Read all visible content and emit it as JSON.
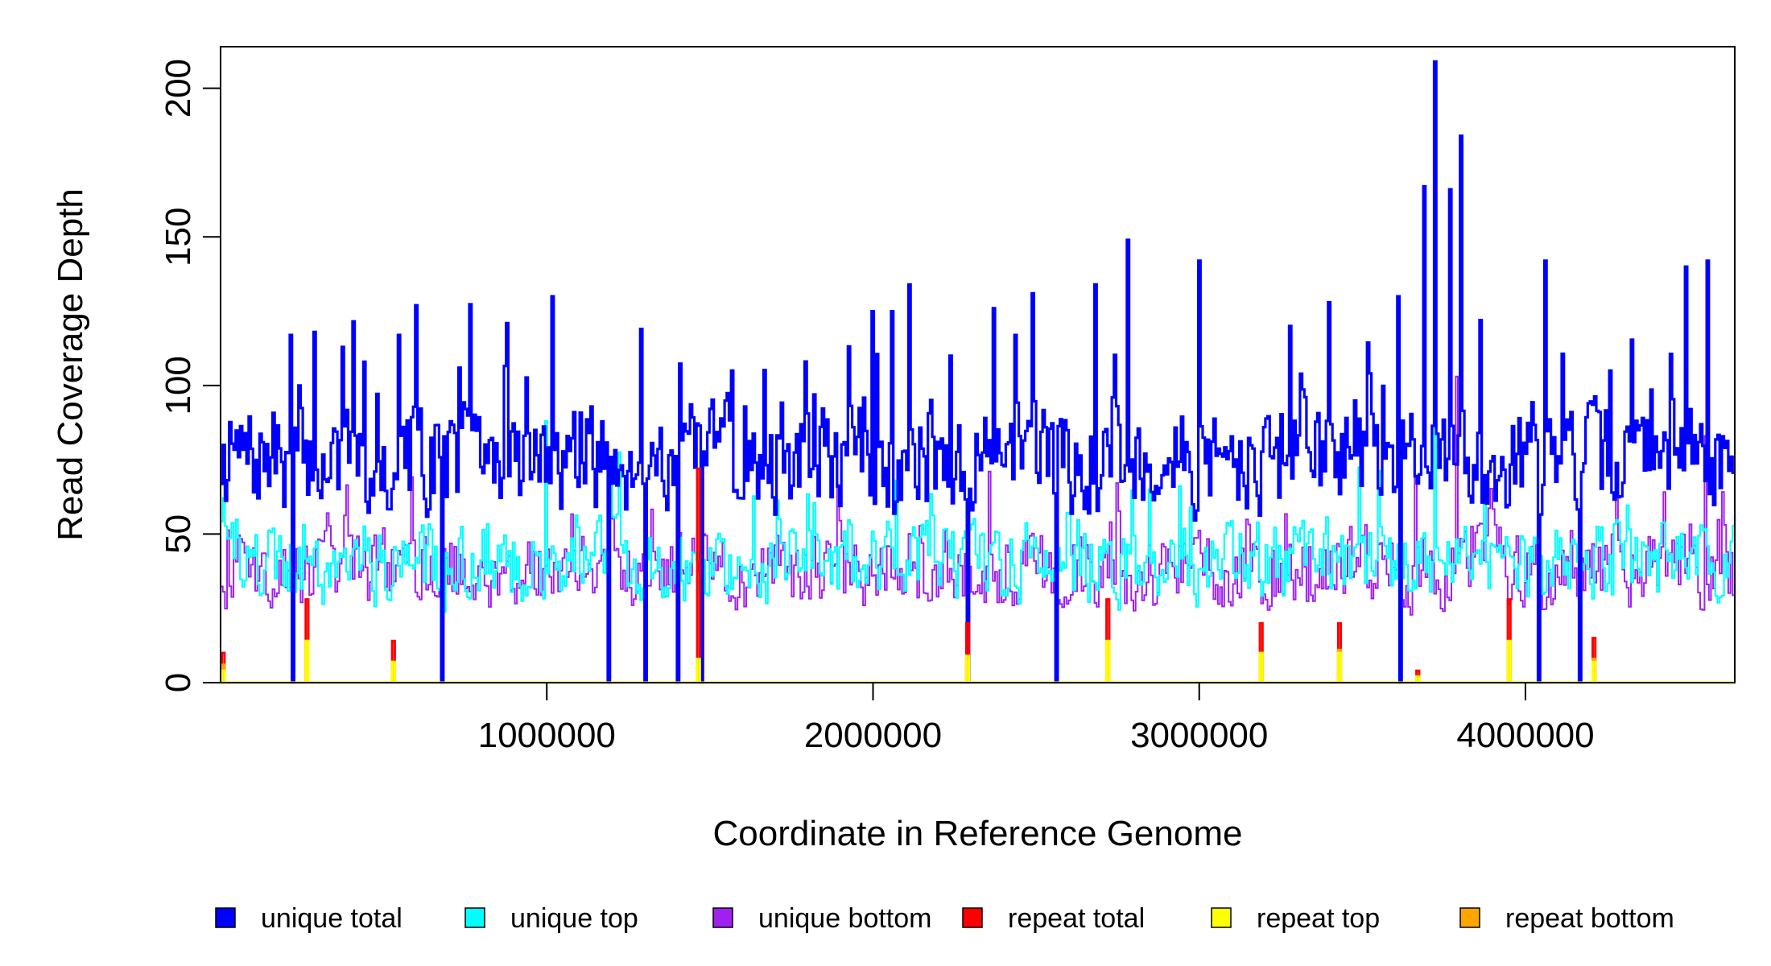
{
  "chart_data": {
    "type": "line",
    "title": "",
    "xlabel": "Coordinate in Reference Genome",
    "ylabel": "Read Coverage Depth",
    "xlim": [
      0,
      4641652
    ],
    "ylim": [
      0,
      214
    ],
    "x_ticks": [
      1000000,
      2000000,
      3000000,
      4000000
    ],
    "x_tick_labels": [
      "1000000",
      "2000000",
      "3000000",
      "4000000"
    ],
    "y_ticks": [
      0,
      50,
      100,
      150,
      200
    ],
    "y_tick_labels": [
      "0",
      "50",
      "100",
      "150",
      "200"
    ],
    "grid": false,
    "legend_position": "bottom",
    "series": [
      {
        "name": "unique total",
        "color": "#0000ff",
        "base": 75,
        "spread": 15,
        "peaks": [
          [
            10000,
            80
          ],
          [
            215000,
            117
          ],
          [
            245000,
            100
          ],
          [
            290000,
            118
          ],
          [
            440000,
            108
          ],
          [
            550000,
            117
          ],
          [
            735000,
            106
          ],
          [
            880000,
            121
          ],
          [
            1015000,
            130
          ],
          [
            1070000,
            78
          ],
          [
            1290000,
            119
          ],
          [
            1400000,
            104
          ],
          [
            1570000,
            105
          ],
          [
            2000000,
            125
          ],
          [
            2060000,
            125
          ],
          [
            2110000,
            134
          ],
          [
            2240000,
            110
          ],
          [
            2370000,
            126
          ],
          [
            2440000,
            117
          ],
          [
            2490000,
            131
          ],
          [
            2680000,
            134
          ],
          [
            2780000,
            149
          ],
          [
            3000000,
            142
          ],
          [
            3280000,
            120
          ],
          [
            3400000,
            128
          ],
          [
            3610000,
            130
          ],
          [
            3690000,
            167
          ],
          [
            3720000,
            209
          ],
          [
            3770000,
            166
          ],
          [
            3800000,
            184
          ],
          [
            3860000,
            122
          ],
          [
            4060000,
            142
          ],
          [
            4260000,
            105
          ],
          [
            4490000,
            140
          ],
          [
            4560000,
            142
          ]
        ],
        "dropouts": [
          220000,
          680000,
          1190000,
          1300000,
          1400000,
          1475000,
          2290000,
          2560000,
          3620000,
          4040000,
          4170000
        ]
      },
      {
        "name": "unique top",
        "color": "#00ffff",
        "base": 40,
        "spread": 11,
        "peaks": [
          [
            1000000,
            88
          ],
          [
            2070000,
            68
          ],
          [
            2850000,
            65
          ],
          [
            3720000,
            127
          ]
        ],
        "dropouts": [
          220000,
          680000,
          1190000,
          1300000,
          1400000,
          1475000,
          2290000,
          2560000,
          3620000,
          4040000,
          4170000
        ]
      },
      {
        "name": "unique bottom",
        "color": "#a020f0",
        "base": 38,
        "spread": 11,
        "peaks": [
          [
            3790000,
            103
          ],
          [
            4550000,
            83
          ]
        ],
        "dropouts": [
          220000,
          680000,
          1190000,
          1300000,
          1400000,
          1475000,
          2290000,
          2560000,
          3620000,
          4040000,
          4170000
        ]
      },
      {
        "name": "repeat total",
        "color": "#ff0000",
        "points": [
          [
            8000,
            10
          ],
          [
            265000,
            28
          ],
          [
            530000,
            14
          ],
          [
            1465000,
            72
          ],
          [
            2290000,
            20
          ],
          [
            2720000,
            28
          ],
          [
            3190000,
            20
          ],
          [
            3430000,
            20
          ],
          [
            3670000,
            4
          ],
          [
            3950000,
            28
          ],
          [
            4210000,
            15
          ]
        ]
      },
      {
        "name": "repeat top",
        "color": "#ffff00",
        "points": [
          [
            8000,
            4
          ],
          [
            265000,
            14
          ],
          [
            530000,
            7
          ],
          [
            1465000,
            8
          ],
          [
            2290000,
            9
          ],
          [
            2720000,
            14
          ],
          [
            3190000,
            10
          ],
          [
            3430000,
            10
          ],
          [
            3670000,
            2
          ],
          [
            3950000,
            14
          ],
          [
            4210000,
            7
          ]
        ]
      },
      {
        "name": "repeat bottom",
        "color": "#ffa500",
        "points": [
          [
            8000,
            6
          ],
          [
            265000,
            14
          ],
          [
            530000,
            7
          ],
          [
            1465000,
            6
          ],
          [
            2290000,
            7
          ],
          [
            2720000,
            13
          ],
          [
            3190000,
            9
          ],
          [
            3430000,
            11
          ],
          [
            3670000,
            2
          ],
          [
            3950000,
            13
          ],
          [
            4210000,
            8
          ]
        ]
      }
    ]
  }
}
